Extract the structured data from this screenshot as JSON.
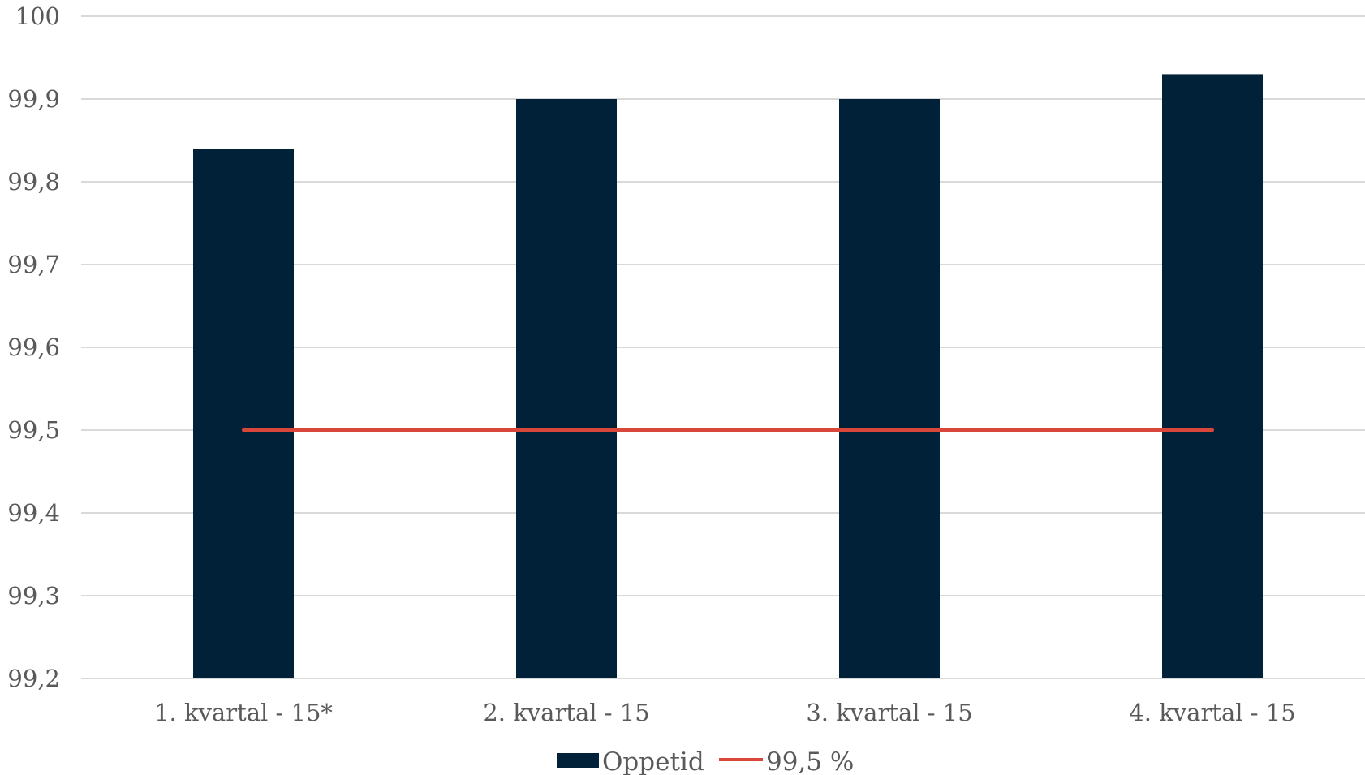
{
  "chart_data": {
    "type": "bar",
    "categories": [
      "1. kvartal - 15*",
      "2. kvartal - 15",
      "3. kvartal - 15",
      "4. kvartal - 15"
    ],
    "series": [
      {
        "name": "Oppetid",
        "type": "bar",
        "values": [
          99.84,
          99.9,
          99.9,
          99.93
        ],
        "color": "#012139"
      },
      {
        "name": "99,5 %",
        "type": "line",
        "values": [
          99.5,
          99.5,
          99.5,
          99.5
        ],
        "color": "#d9473a"
      }
    ],
    "ylim": [
      99.2,
      100
    ],
    "yticks": [
      99.2,
      99.3,
      99.4,
      99.5,
      99.6,
      99.7,
      99.8,
      99.9,
      100
    ],
    "ytick_labels": [
      "99,2",
      "99,3",
      "99,4",
      "99,5",
      "99,6",
      "99,7",
      "99,8",
      "99,9",
      "100"
    ],
    "grid": true,
    "legend_position": "bottom",
    "title": "",
    "xlabel": "",
    "ylabel": ""
  }
}
